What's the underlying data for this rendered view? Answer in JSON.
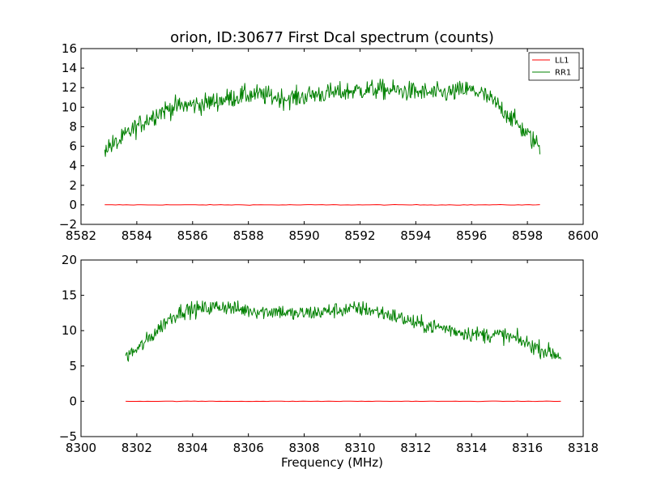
{
  "chart_data": [
    {
      "type": "line",
      "title": "orion, ID:30677 First Dcal spectrum (counts)",
      "xlabel": "",
      "ylabel": "",
      "xlim": [
        8582,
        8600
      ],
      "ylim": [
        -2,
        16
      ],
      "xticks": [
        8582,
        8584,
        8586,
        8588,
        8590,
        8592,
        8594,
        8596,
        8598,
        8600
      ],
      "yticks": [
        -2,
        0,
        2,
        4,
        6,
        8,
        10,
        12,
        14,
        16
      ],
      "legend": {
        "placement": "top-right",
        "entries": [
          "LL1",
          "RR1"
        ]
      },
      "series": [
        {
          "name": "LL1",
          "color": "#ff0000",
          "x_range": [
            8582.85,
            8598.45
          ],
          "values": [
            [
              8582.85,
              0.0
            ],
            [
              8586.0,
              0.0
            ],
            [
              8590.0,
              0.0
            ],
            [
              8594.0,
              0.0
            ],
            [
              8598.45,
              0.0
            ]
          ]
        },
        {
          "name": "RR1",
          "color": "#008000",
          "x_range": [
            8582.85,
            8598.45
          ],
          "values": [
            [
              8582.85,
              5.9
            ],
            [
              8583.3,
              6.3
            ],
            [
              8583.8,
              7.6
            ],
            [
              8584.3,
              8.6
            ],
            [
              8584.8,
              9.5
            ],
            [
              8585.3,
              10.0
            ],
            [
              8585.8,
              10.2
            ],
            [
              8586.3,
              10.3
            ],
            [
              8586.8,
              10.6
            ],
            [
              8587.3,
              10.9
            ],
            [
              8587.8,
              11.2
            ],
            [
              8588.3,
              11.3
            ],
            [
              8588.8,
              11.1
            ],
            [
              8589.3,
              10.9
            ],
            [
              8589.8,
              11.0
            ],
            [
              8590.3,
              11.3
            ],
            [
              8590.8,
              11.4
            ],
            [
              8591.3,
              11.5
            ],
            [
              8591.8,
              11.7
            ],
            [
              8592.3,
              11.8
            ],
            [
              8592.8,
              11.8
            ],
            [
              8593.3,
              11.7
            ],
            [
              8593.8,
              11.6
            ],
            [
              8594.3,
              11.5
            ],
            [
              8594.8,
              11.4
            ],
            [
              8595.3,
              11.5
            ],
            [
              8595.8,
              11.8
            ],
            [
              8596.3,
              11.5
            ],
            [
              8596.8,
              10.5
            ],
            [
              8597.3,
              9.3
            ],
            [
              8597.8,
              7.8
            ],
            [
              8598.2,
              6.6
            ],
            [
              8598.45,
              6.0
            ]
          ],
          "noise": 1.0
        }
      ]
    },
    {
      "type": "line",
      "title": "",
      "xlabel": "Frequency (MHz)",
      "ylabel": "",
      "xlim": [
        8300,
        8318
      ],
      "ylim": [
        -5,
        20
      ],
      "xticks": [
        8300,
        8302,
        8304,
        8306,
        8308,
        8310,
        8312,
        8314,
        8316,
        8318
      ],
      "yticks": [
        -5,
        0,
        5,
        10,
        15,
        20
      ],
      "legend": null,
      "series": [
        {
          "name": "LL1",
          "color": "#ff0000",
          "x_range": [
            8301.6,
            8317.2
          ],
          "values": [
            [
              8301.6,
              0.0
            ],
            [
              8305.0,
              0.0
            ],
            [
              8309.0,
              0.0
            ],
            [
              8313.0,
              0.0
            ],
            [
              8317.2,
              0.0
            ]
          ]
        },
        {
          "name": "RR1",
          "color": "#008000",
          "x_range": [
            8301.6,
            8317.2
          ],
          "values": [
            [
              8301.6,
              6.3
            ],
            [
              8302.1,
              7.6
            ],
            [
              8302.6,
              9.5
            ],
            [
              8303.1,
              11.5
            ],
            [
              8303.6,
              12.8
            ],
            [
              8304.1,
              13.0
            ],
            [
              8304.6,
              13.2
            ],
            [
              8305.1,
              13.5
            ],
            [
              8305.6,
              13.0
            ],
            [
              8306.1,
              12.9
            ],
            [
              8306.6,
              12.7
            ],
            [
              8307.1,
              12.8
            ],
            [
              8307.6,
              12.3
            ],
            [
              8308.1,
              12.5
            ],
            [
              8308.6,
              12.6
            ],
            [
              8309.1,
              12.9
            ],
            [
              8309.6,
              13.0
            ],
            [
              8310.1,
              13.1
            ],
            [
              8310.6,
              12.7
            ],
            [
              8311.1,
              12.2
            ],
            [
              8311.6,
              11.6
            ],
            [
              8312.1,
              10.9
            ],
            [
              8312.6,
              10.6
            ],
            [
              8313.1,
              10.3
            ],
            [
              8313.6,
              9.8
            ],
            [
              8314.1,
              9.5
            ],
            [
              8314.6,
              9.4
            ],
            [
              8315.1,
              9.4
            ],
            [
              8315.6,
              8.8
            ],
            [
              8316.1,
              8.0
            ],
            [
              8316.6,
              7.2
            ],
            [
              8317.2,
              6.4
            ]
          ],
          "noise": 1.1
        }
      ]
    }
  ]
}
